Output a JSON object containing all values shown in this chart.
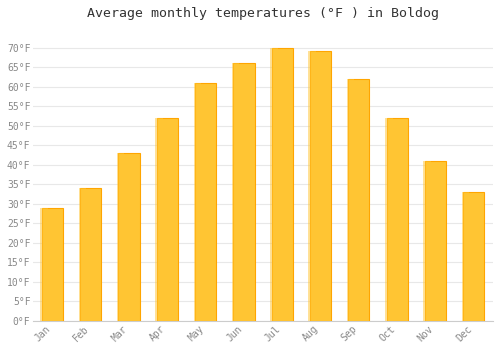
{
  "title": "Average monthly temperatures (°F ) in Boldog",
  "months": [
    "Jan",
    "Feb",
    "Mar",
    "Apr",
    "May",
    "Jun",
    "Jul",
    "Aug",
    "Sep",
    "Oct",
    "Nov",
    "Dec"
  ],
  "values": [
    29,
    34,
    43,
    52,
    61,
    66,
    70,
    69,
    62,
    52,
    41,
    33
  ],
  "bar_color_left": "#FFC533",
  "bar_color_right": "#FFA500",
  "background_color": "#ffffff",
  "grid_color": "#e8e8e8",
  "ylim": [
    0,
    75
  ],
  "yticks": [
    0,
    5,
    10,
    15,
    20,
    25,
    30,
    35,
    40,
    45,
    50,
    55,
    60,
    65,
    70
  ],
  "title_fontsize": 9.5,
  "tick_fontsize": 7,
  "tick_color": "#888888",
  "title_color": "#333333",
  "font_family": "monospace",
  "bar_width": 0.55
}
